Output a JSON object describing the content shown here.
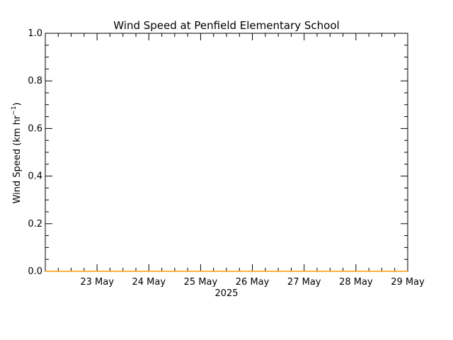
{
  "chart_data": {
    "type": "line",
    "title": "Wind Speed at Penfield Elementary School",
    "ylabel": "Wind Speed (km hr",
    "ylabel_sup": "−1",
    "ylabel_close": ")",
    "xlabel": "2025",
    "x_range": [
      "2025-05-22",
      "2025-05-29"
    ],
    "x_ticks": [
      {
        "date": "2025-05-23",
        "label": "23 May"
      },
      {
        "date": "2025-05-24",
        "label": "24 May"
      },
      {
        "date": "2025-05-25",
        "label": "25 May"
      },
      {
        "date": "2025-05-26",
        "label": "26 May"
      },
      {
        "date": "2025-05-27",
        "label": "27 May"
      },
      {
        "date": "2025-05-28",
        "label": "28 May"
      },
      {
        "date": "2025-05-29",
        "label": "29 May"
      }
    ],
    "ylim": [
      0,
      1
    ],
    "y_ticks": [
      {
        "value": 0.0,
        "label": "0.0"
      },
      {
        "value": 0.2,
        "label": "0.2"
      },
      {
        "value": 0.4,
        "label": "0.4"
      },
      {
        "value": 0.6,
        "label": "0.6"
      },
      {
        "value": 0.8,
        "label": "0.8"
      },
      {
        "value": 1.0,
        "label": "1.0"
      }
    ],
    "series": [
      {
        "color": "#ff9900",
        "x": [
          "2025-05-22",
          "2025-05-29"
        ],
        "values": [
          0,
          0
        ]
      }
    ],
    "grid": false
  }
}
